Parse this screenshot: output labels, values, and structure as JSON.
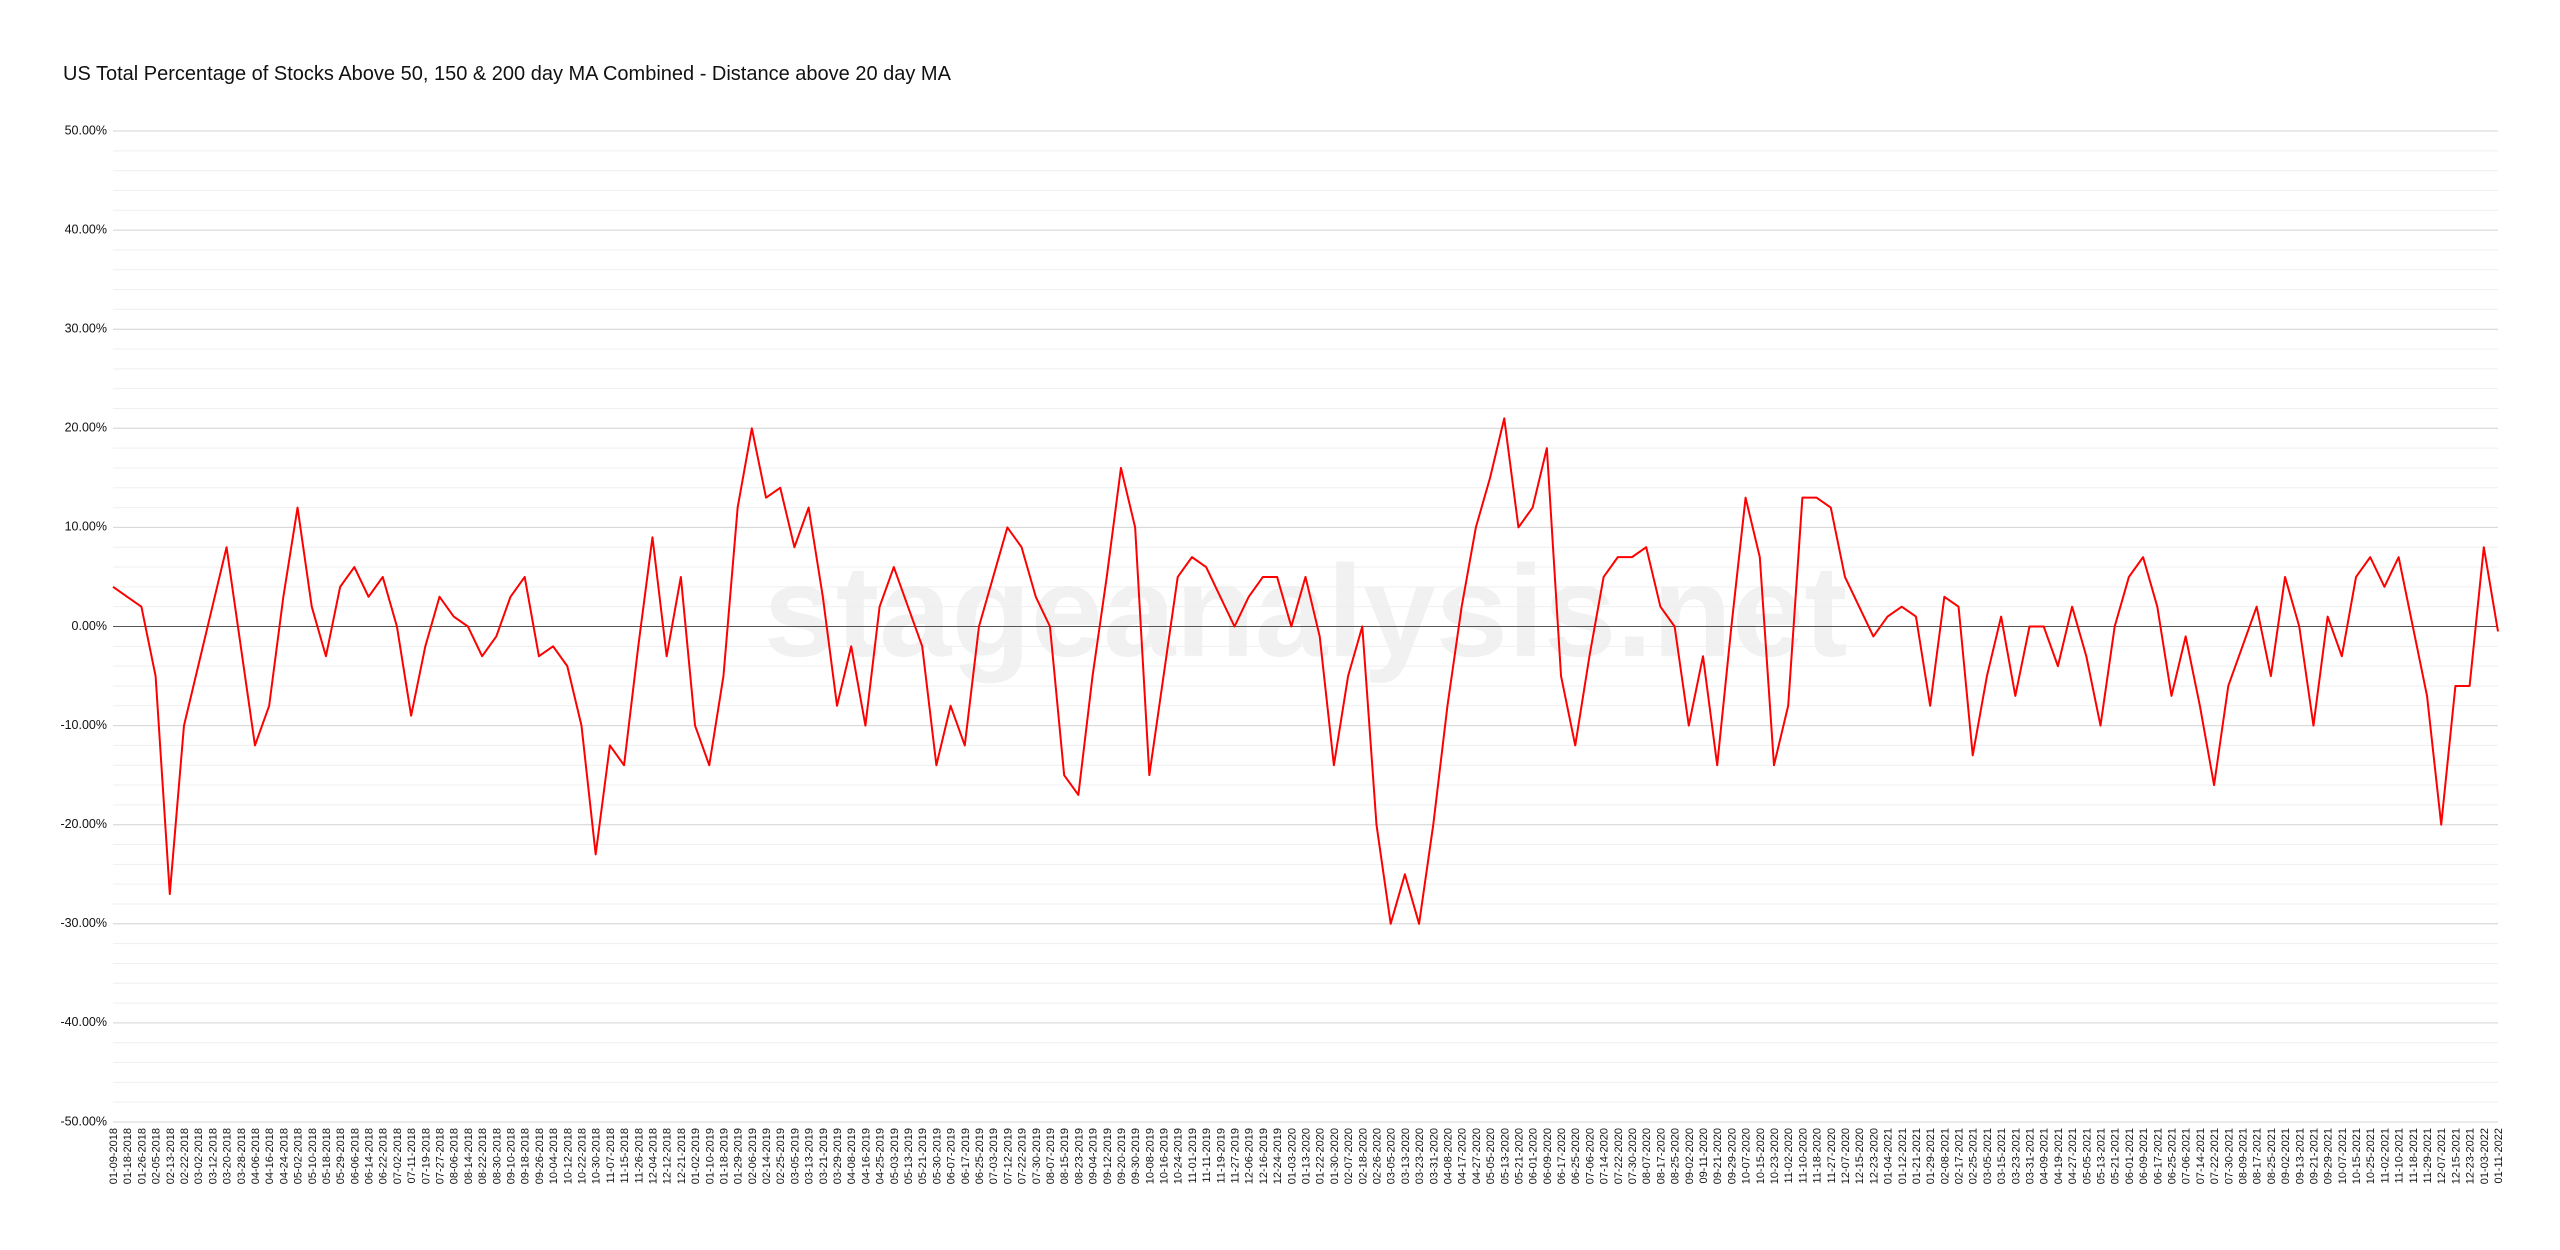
{
  "chart_data": {
    "type": "line",
    "title": "US Total Percentage of Stocks Above 50, 150 & 200 day MA Combined - Distance above 20 day MA",
    "watermark": "stageanalysis.net",
    "color": "#ff0000",
    "grid": true,
    "minor_grid_step": 2,
    "zero_line": true,
    "ylim": [
      -50,
      50
    ],
    "yticks": [
      {
        "value": -50,
        "label": "-50.00%"
      },
      {
        "value": -40,
        "label": "-40.00%"
      },
      {
        "value": -30,
        "label": "-30.00%"
      },
      {
        "value": -20,
        "label": "-20.00%"
      },
      {
        "value": -10,
        "label": "-10.00%"
      },
      {
        "value": 0,
        "label": "0.00%"
      },
      {
        "value": 10,
        "label": "10.00%"
      },
      {
        "value": 20,
        "label": "20.00%"
      },
      {
        "value": 30,
        "label": "30.00%"
      },
      {
        "value": 40,
        "label": "40.00%"
      },
      {
        "value": 50,
        "label": "50.00%"
      }
    ],
    "categories": [
      "01-09-2018",
      "01-18-2018",
      "01-26-2018",
      "02-05-2018",
      "02-13-2018",
      "02-22-2018",
      "03-02-2018",
      "03-12-2018",
      "03-20-2018",
      "03-28-2018",
      "04-06-2018",
      "04-16-2018",
      "04-24-2018",
      "05-02-2018",
      "05-10-2018",
      "05-18-2018",
      "05-29-2018",
      "06-06-2018",
      "06-14-2018",
      "06-22-2018",
      "07-02-2018",
      "07-11-2018",
      "07-19-2018",
      "07-27-2018",
      "08-06-2018",
      "08-14-2018",
      "08-22-2018",
      "08-30-2018",
      "09-10-2018",
      "09-18-2018",
      "09-26-2018",
      "10-04-2018",
      "10-12-2018",
      "10-22-2018",
      "10-30-2018",
      "11-07-2018",
      "11-15-2018",
      "11-26-2018",
      "12-04-2018",
      "12-12-2018",
      "12-21-2018",
      "01-02-2019",
      "01-10-2019",
      "01-18-2019",
      "01-29-2019",
      "02-06-2019",
      "02-14-2019",
      "02-25-2019",
      "03-05-2019",
      "03-13-2019",
      "03-21-2019",
      "03-29-2019",
      "04-08-2019",
      "04-16-2019",
      "04-25-2019",
      "05-03-2019",
      "05-13-2019",
      "05-21-2019",
      "05-30-2019",
      "06-07-2019",
      "06-17-2019",
      "06-25-2019",
      "07-03-2019",
      "07-12-2019",
      "07-22-2019",
      "07-30-2019",
      "08-07-2019",
      "08-15-2019",
      "08-23-2019",
      "09-04-2019",
      "09-12-2019",
      "09-20-2019",
      "09-30-2019",
      "10-08-2019",
      "10-16-2019",
      "10-24-2019",
      "11-01-2019",
      "11-11-2019",
      "11-19-2019",
      "11-27-2019",
      "12-06-2019",
      "12-16-2019",
      "12-24-2019",
      "01-03-2020",
      "01-13-2020",
      "01-22-2020",
      "01-30-2020",
      "02-07-2020",
      "02-18-2020",
      "02-26-2020",
      "03-05-2020",
      "03-13-2020",
      "03-23-2020",
      "03-31-2020",
      "04-08-2020",
      "04-17-2020",
      "04-27-2020",
      "05-05-2020",
      "05-13-2020",
      "05-21-2020",
      "06-01-2020",
      "06-09-2020",
      "06-17-2020",
      "06-25-2020",
      "07-06-2020",
      "07-14-2020",
      "07-22-2020",
      "07-30-2020",
      "08-07-2020",
      "08-17-2020",
      "08-25-2020",
      "09-02-2020",
      "09-11-2020",
      "09-21-2020",
      "09-29-2020",
      "10-07-2020",
      "10-15-2020",
      "10-23-2020",
      "11-02-2020",
      "11-10-2020",
      "11-18-2020",
      "11-27-2020",
      "12-07-2020",
      "12-15-2020",
      "12-23-2020",
      "01-04-2021",
      "01-12-2021",
      "01-21-2021",
      "01-29-2021",
      "02-08-2021",
      "02-17-2021",
      "02-25-2021",
      "03-05-2021",
      "03-15-2021",
      "03-23-2021",
      "03-31-2021",
      "04-09-2021",
      "04-19-2021",
      "04-27-2021",
      "05-05-2021",
      "05-13-2021",
      "05-21-2021",
      "06-01-2021",
      "06-09-2021",
      "06-17-2021",
      "06-25-2021",
      "07-06-2021",
      "07-14-2021",
      "07-22-2021",
      "07-30-2021",
      "08-09-2021",
      "08-17-2021",
      "08-25-2021",
      "09-02-2021",
      "09-13-2021",
      "09-21-2021",
      "09-29-2021",
      "10-07-2021",
      "10-15-2021",
      "10-25-2021",
      "11-02-2021",
      "11-10-2021",
      "11-18-2021",
      "11-29-2021",
      "12-07-2021",
      "12-15-2021",
      "12-23-2021",
      "01-03-2022",
      "01-11-2022"
    ],
    "values": [
      4,
      3,
      2,
      -5,
      -27,
      -10,
      -4,
      2,
      8,
      -2,
      -12,
      -8,
      3,
      12,
      2,
      -3,
      4,
      6,
      3,
      5,
      0,
      -9,
      -2,
      3,
      1,
      0,
      -3,
      -1,
      3,
      5,
      -3,
      -2,
      -4,
      -10,
      -23,
      -12,
      -14,
      -2,
      9,
      -3,
      5,
      -10,
      -14,
      -5,
      12,
      20,
      13,
      14,
      8,
      12,
      3,
      -8,
      -2,
      -10,
      2,
      6,
      2,
      -2,
      -14,
      -8,
      -12,
      0,
      5,
      10,
      8,
      3,
      0,
      -15,
      -17,
      -5,
      5,
      16,
      10,
      -15,
      -5,
      5,
      7,
      6,
      3,
      0,
      3,
      5,
      5,
      0,
      5,
      -1,
      -14,
      -5,
      0,
      -20,
      -30,
      -25,
      -30,
      -20,
      -8,
      2,
      10,
      15,
      21,
      10,
      12,
      18,
      -5,
      -12,
      -3,
      5,
      7,
      7,
      8,
      2,
      0,
      -10,
      -3,
      -14,
      0,
      13,
      7,
      -14,
      -8,
      13,
      13,
      12,
      5,
      2,
      -1,
      1,
      2,
      1,
      -8,
      3,
      2,
      -13,
      -5,
      1,
      -7,
      0,
      0,
      -4,
      2,
      -3,
      -10,
      0,
      5,
      7,
      2,
      -7,
      -1,
      -8,
      -16,
      -6,
      -2,
      2,
      -5,
      5,
      0,
      -10,
      1,
      -3,
      5,
      7,
      4,
      7,
      0,
      -7,
      -20,
      -6,
      -6,
      8,
      -0.5
    ]
  }
}
